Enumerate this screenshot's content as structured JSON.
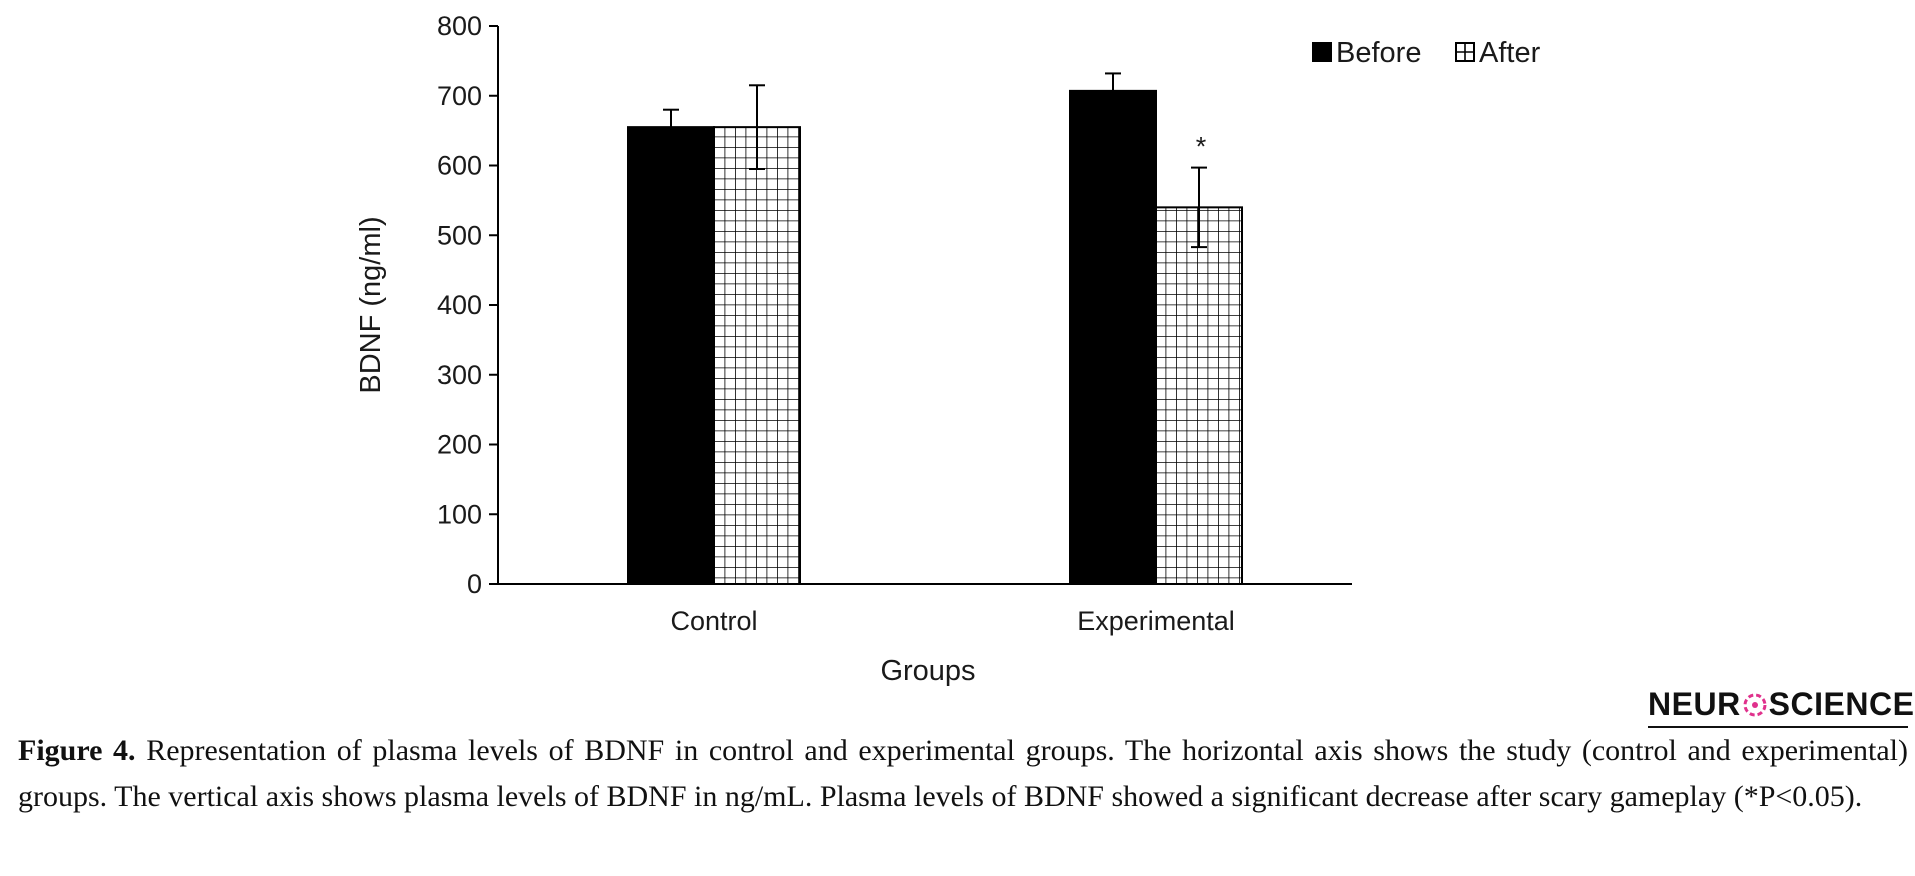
{
  "chart_data": {
    "type": "bar",
    "categories": [
      "Control",
      "Experimental"
    ],
    "series": [
      {
        "name": "Before",
        "values": [
          655,
          707
        ],
        "errors": [
          25,
          25
        ],
        "fill": "solid-black"
      },
      {
        "name": "After",
        "values": [
          655,
          540
        ],
        "errors": [
          60,
          57
        ],
        "fill": "grid-pattern"
      }
    ],
    "xlabel": "Groups",
    "ylabel": "BDNF  (ng/ml)",
    "ylim": [
      0,
      800
    ],
    "yticks": [
      0,
      100,
      200,
      300,
      400,
      500,
      600,
      700,
      800
    ],
    "ytick_labels": [
      "0",
      "100",
      "200",
      "300",
      "400",
      "500",
      "600",
      "700",
      "800"
    ],
    "annotations": [
      {
        "category": "Experimental",
        "series": "After",
        "text": "*"
      }
    ],
    "legend_position": "top-right",
    "grid": false
  },
  "logo": {
    "left": "NEUR",
    "right": "SCIENCE",
    "accent_color": "#e0318c"
  },
  "caption": {
    "label": "Figure 4.",
    "text": " Representation of plasma levels of BDNF in control and experimental groups. The horizontal axis shows the study (control and experimental) groups. The vertical axis shows plasma levels of BDNF in ng/mL. Plasma levels of BDNF showed a significant decrease after scary gameplay (*P<0.05)."
  }
}
